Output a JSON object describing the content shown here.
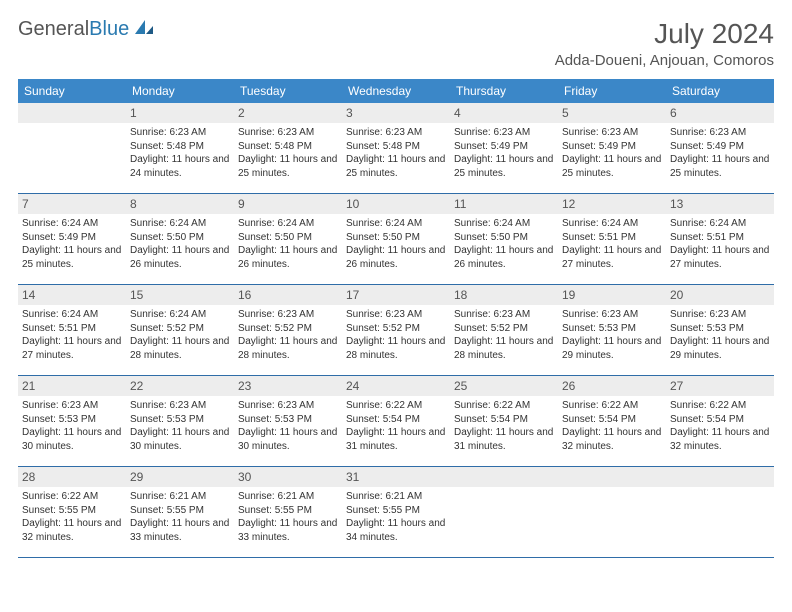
{
  "logo": {
    "text1": "General",
    "text2": "Blue",
    "icon_color": "#2a7ab0"
  },
  "title": "July 2024",
  "location": "Adda-Doueni, Anjouan, Comoros",
  "header_bg": "#3b87c8",
  "daynum_bg": "#ededed",
  "border_color": "#2f6da8",
  "dow": [
    "Sunday",
    "Monday",
    "Tuesday",
    "Wednesday",
    "Thursday",
    "Friday",
    "Saturday"
  ],
  "weeks": [
    [
      {
        "n": "",
        "sr": "",
        "ss": "",
        "dl": ""
      },
      {
        "n": "1",
        "sr": "Sunrise: 6:23 AM",
        "ss": "Sunset: 5:48 PM",
        "dl": "Daylight: 11 hours and 24 minutes."
      },
      {
        "n": "2",
        "sr": "Sunrise: 6:23 AM",
        "ss": "Sunset: 5:48 PM",
        "dl": "Daylight: 11 hours and 25 minutes."
      },
      {
        "n": "3",
        "sr": "Sunrise: 6:23 AM",
        "ss": "Sunset: 5:48 PM",
        "dl": "Daylight: 11 hours and 25 minutes."
      },
      {
        "n": "4",
        "sr": "Sunrise: 6:23 AM",
        "ss": "Sunset: 5:49 PM",
        "dl": "Daylight: 11 hours and 25 minutes."
      },
      {
        "n": "5",
        "sr": "Sunrise: 6:23 AM",
        "ss": "Sunset: 5:49 PM",
        "dl": "Daylight: 11 hours and 25 minutes."
      },
      {
        "n": "6",
        "sr": "Sunrise: 6:23 AM",
        "ss": "Sunset: 5:49 PM",
        "dl": "Daylight: 11 hours and 25 minutes."
      }
    ],
    [
      {
        "n": "7",
        "sr": "Sunrise: 6:24 AM",
        "ss": "Sunset: 5:49 PM",
        "dl": "Daylight: 11 hours and 25 minutes."
      },
      {
        "n": "8",
        "sr": "Sunrise: 6:24 AM",
        "ss": "Sunset: 5:50 PM",
        "dl": "Daylight: 11 hours and 26 minutes."
      },
      {
        "n": "9",
        "sr": "Sunrise: 6:24 AM",
        "ss": "Sunset: 5:50 PM",
        "dl": "Daylight: 11 hours and 26 minutes."
      },
      {
        "n": "10",
        "sr": "Sunrise: 6:24 AM",
        "ss": "Sunset: 5:50 PM",
        "dl": "Daylight: 11 hours and 26 minutes."
      },
      {
        "n": "11",
        "sr": "Sunrise: 6:24 AM",
        "ss": "Sunset: 5:50 PM",
        "dl": "Daylight: 11 hours and 26 minutes."
      },
      {
        "n": "12",
        "sr": "Sunrise: 6:24 AM",
        "ss": "Sunset: 5:51 PM",
        "dl": "Daylight: 11 hours and 27 minutes."
      },
      {
        "n": "13",
        "sr": "Sunrise: 6:24 AM",
        "ss": "Sunset: 5:51 PM",
        "dl": "Daylight: 11 hours and 27 minutes."
      }
    ],
    [
      {
        "n": "14",
        "sr": "Sunrise: 6:24 AM",
        "ss": "Sunset: 5:51 PM",
        "dl": "Daylight: 11 hours and 27 minutes."
      },
      {
        "n": "15",
        "sr": "Sunrise: 6:24 AM",
        "ss": "Sunset: 5:52 PM",
        "dl": "Daylight: 11 hours and 28 minutes."
      },
      {
        "n": "16",
        "sr": "Sunrise: 6:23 AM",
        "ss": "Sunset: 5:52 PM",
        "dl": "Daylight: 11 hours and 28 minutes."
      },
      {
        "n": "17",
        "sr": "Sunrise: 6:23 AM",
        "ss": "Sunset: 5:52 PM",
        "dl": "Daylight: 11 hours and 28 minutes."
      },
      {
        "n": "18",
        "sr": "Sunrise: 6:23 AM",
        "ss": "Sunset: 5:52 PM",
        "dl": "Daylight: 11 hours and 28 minutes."
      },
      {
        "n": "19",
        "sr": "Sunrise: 6:23 AM",
        "ss": "Sunset: 5:53 PM",
        "dl": "Daylight: 11 hours and 29 minutes."
      },
      {
        "n": "20",
        "sr": "Sunrise: 6:23 AM",
        "ss": "Sunset: 5:53 PM",
        "dl": "Daylight: 11 hours and 29 minutes."
      }
    ],
    [
      {
        "n": "21",
        "sr": "Sunrise: 6:23 AM",
        "ss": "Sunset: 5:53 PM",
        "dl": "Daylight: 11 hours and 30 minutes."
      },
      {
        "n": "22",
        "sr": "Sunrise: 6:23 AM",
        "ss": "Sunset: 5:53 PM",
        "dl": "Daylight: 11 hours and 30 minutes."
      },
      {
        "n": "23",
        "sr": "Sunrise: 6:23 AM",
        "ss": "Sunset: 5:53 PM",
        "dl": "Daylight: 11 hours and 30 minutes."
      },
      {
        "n": "24",
        "sr": "Sunrise: 6:22 AM",
        "ss": "Sunset: 5:54 PM",
        "dl": "Daylight: 11 hours and 31 minutes."
      },
      {
        "n": "25",
        "sr": "Sunrise: 6:22 AM",
        "ss": "Sunset: 5:54 PM",
        "dl": "Daylight: 11 hours and 31 minutes."
      },
      {
        "n": "26",
        "sr": "Sunrise: 6:22 AM",
        "ss": "Sunset: 5:54 PM",
        "dl": "Daylight: 11 hours and 32 minutes."
      },
      {
        "n": "27",
        "sr": "Sunrise: 6:22 AM",
        "ss": "Sunset: 5:54 PM",
        "dl": "Daylight: 11 hours and 32 minutes."
      }
    ],
    [
      {
        "n": "28",
        "sr": "Sunrise: 6:22 AM",
        "ss": "Sunset: 5:55 PM",
        "dl": "Daylight: 11 hours and 32 minutes."
      },
      {
        "n": "29",
        "sr": "Sunrise: 6:21 AM",
        "ss": "Sunset: 5:55 PM",
        "dl": "Daylight: 11 hours and 33 minutes."
      },
      {
        "n": "30",
        "sr": "Sunrise: 6:21 AM",
        "ss": "Sunset: 5:55 PM",
        "dl": "Daylight: 11 hours and 33 minutes."
      },
      {
        "n": "31",
        "sr": "Sunrise: 6:21 AM",
        "ss": "Sunset: 5:55 PM",
        "dl": "Daylight: 11 hours and 34 minutes."
      },
      {
        "n": "",
        "sr": "",
        "ss": "",
        "dl": ""
      },
      {
        "n": "",
        "sr": "",
        "ss": "",
        "dl": ""
      },
      {
        "n": "",
        "sr": "",
        "ss": "",
        "dl": ""
      }
    ]
  ]
}
